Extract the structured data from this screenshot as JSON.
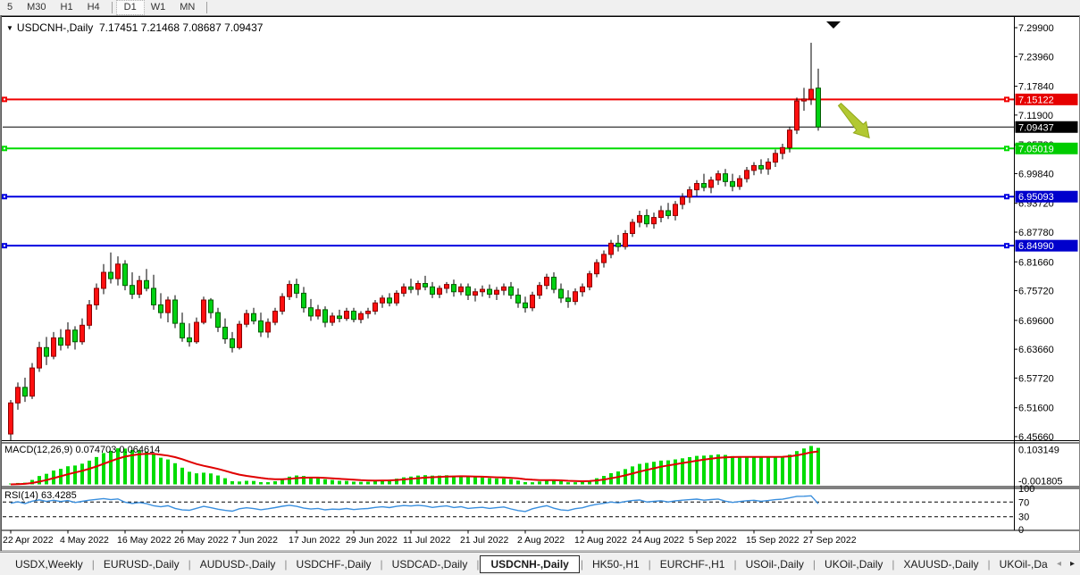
{
  "toolbar": {
    "timeframes": [
      "5",
      "M30",
      "H1",
      "H4",
      "D1",
      "W1",
      "MN"
    ],
    "active": "D1"
  },
  "chart": {
    "collapse_icon": "▼",
    "title_symbol": "USDCNH-,Daily",
    "title_ohlc": "7.17451 7.21468 7.08687 7.09437",
    "price_axis_ticks": [
      "7.29900",
      "7.23960",
      "7.17840",
      "7.11900",
      "7.05780",
      "6.99840",
      "6.93720",
      "6.87780",
      "6.81660",
      "6.75720",
      "6.69600",
      "6.63660",
      "6.57720",
      "6.51600",
      "6.45660"
    ],
    "hlines": [
      {
        "value": 7.15122,
        "label": "7.15122",
        "color": "#f00000",
        "badge": "#e60000",
        "width": 2,
        "handles": true
      },
      {
        "value": 7.09437,
        "label": "7.09437",
        "color": "#000000",
        "badge": "#000000",
        "width": 1,
        "handles": false
      },
      {
        "value": 7.05019,
        "label": "7.05019",
        "color": "#00dc00",
        "badge": "#00cc00",
        "width": 2,
        "handles": true
      },
      {
        "value": 6.95093,
        "label": "6.95093",
        "color": "#0000e0",
        "badge": "#0000cc",
        "width": 2,
        "handles": true
      },
      {
        "value": 6.8499,
        "label": "6.84990",
        "color": "#0000e0",
        "badge": "#0000cc",
        "width": 2,
        "handles": true
      }
    ],
    "date_ticks": [
      "22 Apr 2022",
      "4 May 2022",
      "16 May 2022",
      "26 May 2022",
      "7 Jun 2022",
      "17 Jun 2022",
      "29 Jun 2022",
      "11 Jul 2022",
      "21 Jul 2022",
      "2 Aug 2022",
      "12 Aug 2022",
      "24 Aug 2022",
      "5 Sep 2022",
      "15 Sep 2022",
      "27 Sep 2022"
    ],
    "colors": {
      "bull_candle": "#ff0f0f",
      "bull_border": "#8c0000",
      "bear_candle": "#00d212",
      "bear_border": "#005c00",
      "wick": "#000000",
      "macd_histogram": "#00dc00",
      "macd_signal": "#e00000",
      "rsi_line": "#3a8fde",
      "arrow_annotation": "#b2c832",
      "arrow_annotation_edge": "#93a81c",
      "top_marker": "#0a0a0a"
    }
  },
  "chart_data": {
    "type": "candlestick",
    "symbol": "USDCNH",
    "timeframe": "Daily",
    "last_bar": {
      "open": "7.17451",
      "high": "7.21468",
      "low": "7.08687",
      "close": "7.09437"
    },
    "candles": [
      [
        6.462,
        6.532,
        6.448,
        6.526
      ],
      [
        6.526,
        6.568,
        6.512,
        6.558
      ],
      [
        6.558,
        6.578,
        6.528,
        6.54
      ],
      [
        6.54,
        6.608,
        6.534,
        6.598
      ],
      [
        6.598,
        6.652,
        6.59,
        6.64
      ],
      [
        6.64,
        6.662,
        6.604,
        6.622
      ],
      [
        6.622,
        6.672,
        6.616,
        6.66
      ],
      [
        6.66,
        6.678,
        6.634,
        6.645
      ],
      [
        6.645,
        6.692,
        6.638,
        6.676
      ],
      [
        6.676,
        6.684,
        6.636,
        6.652
      ],
      [
        6.652,
        6.7,
        6.646,
        6.686
      ],
      [
        6.686,
        6.738,
        6.678,
        6.728
      ],
      [
        6.728,
        6.772,
        6.718,
        6.762
      ],
      [
        6.762,
        6.812,
        6.75,
        6.795
      ],
      [
        6.795,
        6.836,
        6.772,
        6.782
      ],
      [
        6.782,
        6.828,
        6.768,
        6.812
      ],
      [
        6.812,
        6.82,
        6.758,
        6.768
      ],
      [
        6.768,
        6.795,
        6.74,
        6.75
      ],
      [
        6.75,
        6.788,
        6.742,
        6.778
      ],
      [
        6.778,
        6.802,
        6.756,
        6.762
      ],
      [
        6.762,
        6.79,
        6.718,
        6.728
      ],
      [
        6.728,
        6.752,
        6.7,
        6.712
      ],
      [
        6.712,
        6.745,
        6.692,
        6.738
      ],
      [
        6.738,
        6.748,
        6.68,
        6.69
      ],
      [
        6.69,
        6.712,
        6.652,
        6.66
      ],
      [
        6.66,
        6.69,
        6.642,
        6.652
      ],
      [
        6.652,
        6.702,
        6.648,
        6.692
      ],
      [
        6.692,
        6.745,
        6.688,
        6.738
      ],
      [
        6.738,
        6.742,
        6.7,
        6.712
      ],
      [
        6.712,
        6.722,
        6.672,
        6.682
      ],
      [
        6.682,
        6.7,
        6.648,
        6.658
      ],
      [
        6.658,
        6.672,
        6.63,
        6.64
      ],
      [
        6.64,
        6.695,
        6.636,
        6.688
      ],
      [
        6.688,
        6.718,
        6.682,
        6.71
      ],
      [
        6.71,
        6.722,
        6.688,
        6.695
      ],
      [
        6.695,
        6.712,
        6.662,
        6.672
      ],
      [
        6.672,
        6.7,
        6.66,
        6.692
      ],
      [
        6.692,
        6.722,
        6.686,
        6.715
      ],
      [
        6.715,
        6.752,
        6.708,
        6.745
      ],
      [
        6.745,
        6.778,
        6.738,
        6.77
      ],
      [
        6.77,
        6.782,
        6.742,
        6.752
      ],
      [
        6.752,
        6.765,
        6.712,
        6.722
      ],
      [
        6.722,
        6.74,
        6.695,
        6.705
      ],
      [
        6.705,
        6.728,
        6.698,
        6.718
      ],
      [
        6.718,
        6.725,
        6.682,
        6.692
      ],
      [
        6.692,
        6.712,
        6.685,
        6.705
      ],
      [
        6.705,
        6.718,
        6.692,
        6.7
      ],
      [
        6.7,
        6.722,
        6.695,
        6.715
      ],
      [
        6.715,
        6.722,
        6.692,
        6.698
      ],
      [
        6.698,
        6.715,
        6.69,
        6.71
      ],
      [
        6.71,
        6.722,
        6.7,
        6.715
      ],
      [
        6.715,
        6.738,
        6.708,
        6.732
      ],
      [
        6.732,
        6.748,
        6.722,
        6.742
      ],
      [
        6.742,
        6.752,
        6.725,
        6.732
      ],
      [
        6.732,
        6.758,
        6.726,
        6.752
      ],
      [
        6.752,
        6.772,
        6.745,
        6.765
      ],
      [
        6.765,
        6.782,
        6.752,
        6.76
      ],
      [
        6.76,
        6.778,
        6.748,
        6.772
      ],
      [
        6.772,
        6.788,
        6.758,
        6.765
      ],
      [
        6.765,
        6.775,
        6.742,
        6.75
      ],
      [
        6.75,
        6.768,
        6.742,
        6.762
      ],
      [
        6.762,
        6.775,
        6.752,
        6.77
      ],
      [
        6.77,
        6.78,
        6.745,
        6.755
      ],
      [
        6.755,
        6.772,
        6.748,
        6.765
      ],
      [
        6.765,
        6.772,
        6.738,
        6.748
      ],
      [
        6.748,
        6.762,
        6.735,
        6.755
      ],
      [
        6.755,
        6.768,
        6.745,
        6.76
      ],
      [
        6.76,
        6.77,
        6.742,
        6.75
      ],
      [
        6.75,
        6.765,
        6.738,
        6.758
      ],
      [
        6.758,
        6.772,
        6.748,
        6.765
      ],
      [
        6.765,
        6.775,
        6.74,
        6.748
      ],
      [
        6.748,
        6.762,
        6.722,
        6.732
      ],
      [
        6.732,
        6.745,
        6.712,
        6.722
      ],
      [
        6.722,
        6.755,
        6.715,
        6.748
      ],
      [
        6.748,
        6.775,
        6.74,
        6.768
      ],
      [
        6.768,
        6.792,
        6.76,
        6.785
      ],
      [
        6.785,
        6.795,
        6.752,
        6.76
      ],
      [
        6.76,
        6.772,
        6.732,
        6.742
      ],
      [
        6.742,
        6.758,
        6.722,
        6.735
      ],
      [
        6.735,
        6.762,
        6.728,
        6.755
      ],
      [
        6.755,
        6.772,
        6.745,
        6.765
      ],
      [
        6.765,
        6.798,
        6.758,
        6.792
      ],
      [
        6.792,
        6.822,
        6.785,
        6.815
      ],
      [
        6.815,
        6.84,
        6.805,
        6.832
      ],
      [
        6.832,
        6.862,
        6.824,
        6.855
      ],
      [
        6.855,
        6.872,
        6.838,
        6.848
      ],
      [
        6.848,
        6.882,
        6.842,
        6.875
      ],
      [
        6.875,
        6.905,
        6.868,
        6.898
      ],
      [
        6.898,
        6.922,
        6.888,
        6.912
      ],
      [
        6.912,
        6.925,
        6.888,
        6.895
      ],
      [
        6.895,
        6.918,
        6.885,
        6.908
      ],
      [
        6.908,
        6.932,
        6.898,
        6.922
      ],
      [
        6.922,
        6.938,
        6.905,
        6.912
      ],
      [
        6.912,
        6.942,
        6.902,
        6.935
      ],
      [
        6.935,
        6.958,
        6.925,
        6.95
      ],
      [
        6.95,
        6.972,
        6.938,
        6.965
      ],
      [
        6.965,
        6.985,
        6.952,
        6.978
      ],
      [
        6.978,
        6.998,
        6.962,
        6.97
      ],
      [
        6.97,
        6.992,
        6.958,
        6.985
      ],
      [
        6.985,
        7.005,
        6.975,
        6.998
      ],
      [
        6.998,
        7.008,
        6.972,
        6.982
      ],
      [
        6.982,
        6.998,
        6.962,
        6.972
      ],
      [
        6.972,
        6.995,
        6.965,
        6.988
      ],
      [
        6.988,
        7.012,
        6.98,
        7.005
      ],
      [
        7.005,
        7.022,
        6.995,
        7.015
      ],
      [
        7.015,
        7.028,
        6.998,
        7.008
      ],
      [
        7.008,
        7.03,
        6.996,
        7.022
      ],
      [
        7.022,
        7.048,
        7.012,
        7.04
      ],
      [
        7.04,
        7.06,
        7.028,
        7.052
      ],
      [
        7.052,
        7.095,
        7.042,
        7.088
      ],
      [
        7.088,
        7.155,
        7.08,
        7.148
      ],
      [
        7.148,
        7.175,
        7.128,
        7.152
      ],
      [
        7.152,
        7.268,
        7.14,
        7.172
      ],
      [
        7.17451,
        7.21468,
        7.08687,
        7.09437
      ]
    ]
  },
  "macd": {
    "label": "MACD(12,26,9)",
    "values": "0.074703 0.064614",
    "scale_top": "0.103149",
    "scale_bottom": "-0.001805",
    "fast": 12,
    "slow": 26,
    "signal": 9
  },
  "rsi": {
    "label": "RSI(14)",
    "value": "63.4285",
    "period": 14,
    "scale": [
      "100",
      "70",
      "30",
      "0"
    ],
    "levels": [
      70,
      30
    ]
  },
  "tabs": {
    "items": [
      "USDX,Weekly",
      "EURUSD-,Daily",
      "AUDUSD-,Daily",
      "USDCHF-,Daily",
      "USDCAD-,Daily",
      "USDCNH-,Daily",
      "HK50-,H1",
      "EURCHF-,H1",
      "USOil-,Daily",
      "UKOil-,Daily",
      "XAUUSD-,Daily",
      "UKOil-,Da"
    ],
    "active": "USDCNH-,Daily",
    "scroll_left_icon": "◂",
    "scroll_right_icon": "▸"
  }
}
